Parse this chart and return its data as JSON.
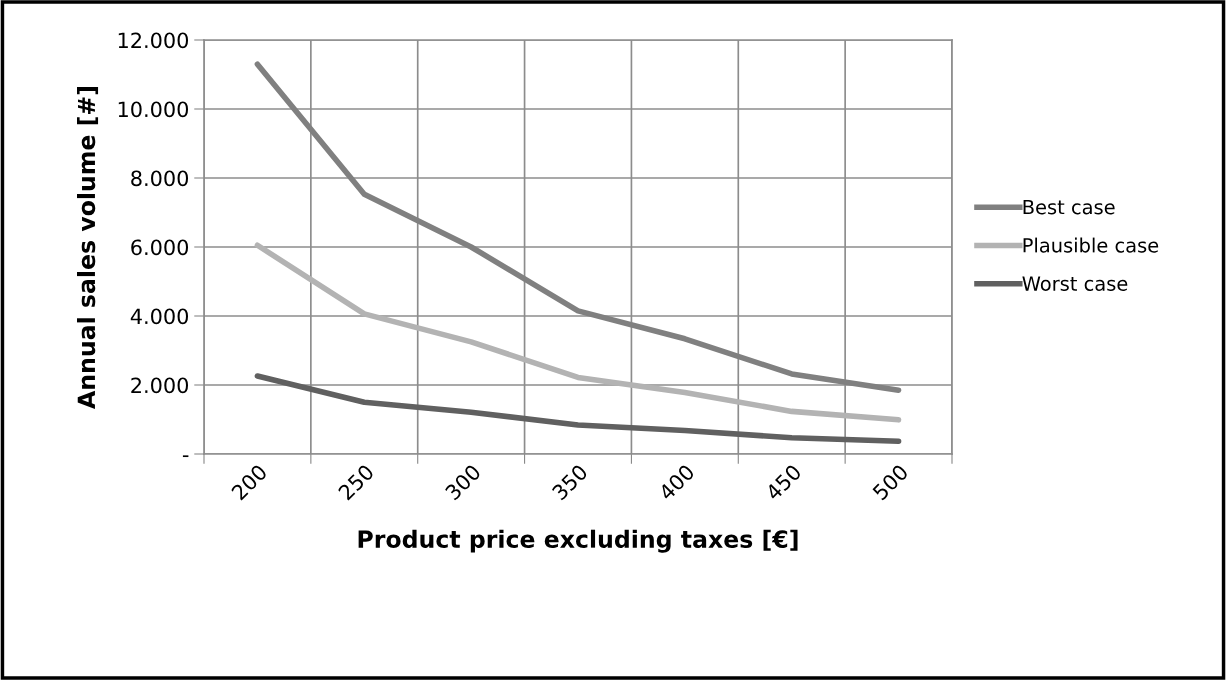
{
  "chart_data": {
    "type": "line",
    "xlabel": "Product price excluding taxes [€]",
    "ylabel": "Annual sales volume [#]",
    "categories": [
      "200",
      "250",
      "300",
      "350",
      "400",
      "450",
      "500"
    ],
    "series": [
      {
        "name": "Best case",
        "color": "#808080",
        "values": [
          11300,
          7530,
          6000,
          4150,
          3340,
          2320,
          1850
        ]
      },
      {
        "name": "Plausible case",
        "color": "#b3b3b3",
        "values": [
          6050,
          4060,
          3250,
          2220,
          1780,
          1235,
          990
        ]
      },
      {
        "name": "Worst case",
        "color": "#606060",
        "values": [
          2260,
          1500,
          1210,
          840,
          680,
          470,
          370
        ]
      }
    ],
    "ylim": [
      0,
      12000
    ],
    "yticks": [
      {
        "value": 0,
        "label": "-"
      },
      {
        "value": 2000,
        "label": "2.000"
      },
      {
        "value": 4000,
        "label": "4.000"
      },
      {
        "value": 6000,
        "label": "6.000"
      },
      {
        "value": 8000,
        "label": "8.000"
      },
      {
        "value": 10000,
        "label": "10.000"
      },
      {
        "value": 12000,
        "label": "12.000"
      }
    ],
    "grid": true,
    "legend": "right",
    "marker": "none",
    "line_style": "solid"
  }
}
